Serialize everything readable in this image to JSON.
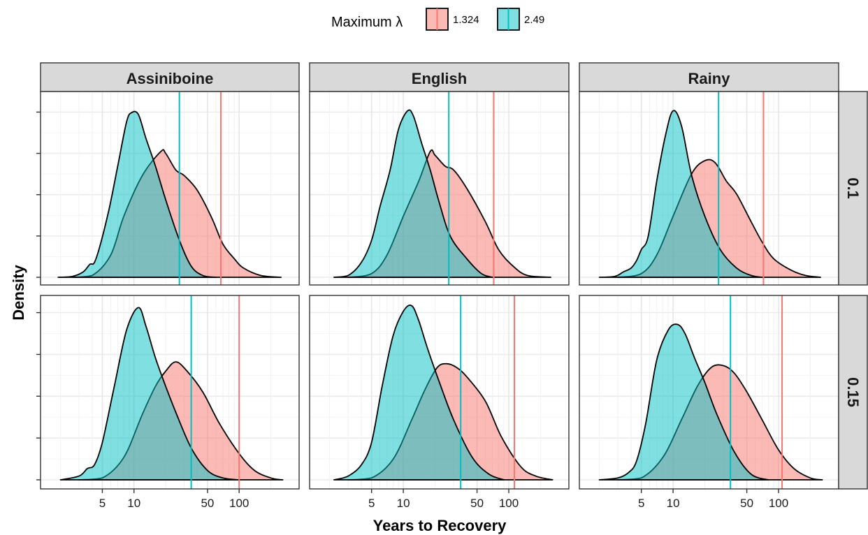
{
  "chart_data": {
    "type": "area",
    "subtype": "faceted density plot (log x axis)",
    "xlabel": "Years to Recovery",
    "ylabel": "Density",
    "x_scale": "log10",
    "x_range": [
      1.6,
      300
    ],
    "x_ticks": [
      5,
      10,
      50,
      100
    ],
    "x_tick_labels": [
      "5",
      "10",
      "50",
      "100"
    ],
    "grid": true,
    "legend": {
      "title": "Maximum λ",
      "position": "top",
      "entries": [
        {
          "label": "1.324",
          "color": "#f8766d"
        },
        {
          "label": "2.49",
          "color": "#00bfc4"
        }
      ]
    },
    "columns": [
      "Assiniboine",
      "English",
      "Rainy"
    ],
    "rows": [
      "0.1",
      "0.15"
    ],
    "y_ticks_count": 5,
    "panels": [
      {
        "column": "Assiniboine",
        "row": "0.1",
        "ymax": 0.94,
        "series": [
          {
            "name": "1.324",
            "points": [
              [
                2.6,
                0
              ],
              [
                4,
                0.01
              ],
              [
                6,
                0.12
              ],
              [
                8,
                0.33
              ],
              [
                12,
                0.55
              ],
              [
                18,
                0.68
              ],
              [
                20,
                0.67
              ],
              [
                25,
                0.58
              ],
              [
                30,
                0.55
              ],
              [
                40,
                0.47
              ],
              [
                55,
                0.32
              ],
              [
                70,
                0.18
              ],
              [
                90,
                0.1
              ],
              [
                110,
                0.05
              ],
              [
                160,
                0.01
              ],
              [
                250,
                0
              ]
            ],
            "median_line": 67
          },
          {
            "name": "2.49",
            "points": [
              [
                1.9,
                0
              ],
              [
                2.6,
                0.005
              ],
              [
                3.3,
                0.03
              ],
              [
                3.8,
                0.07
              ],
              [
                4.2,
                0.08
              ],
              [
                4.8,
                0.18
              ],
              [
                5.8,
                0.37
              ],
              [
                7,
                0.6
              ],
              [
                8.5,
                0.84
              ],
              [
                9.5,
                0.89
              ],
              [
                11,
                0.88
              ],
              [
                13,
                0.75
              ],
              [
                16,
                0.6
              ],
              [
                20,
                0.42
              ],
              [
                27,
                0.2
              ],
              [
                35,
                0.06
              ],
              [
                45,
                0.01
              ],
              [
                60,
                0
              ]
            ],
            "median_line": 27
          }
        ]
      },
      {
        "column": "English",
        "row": "0.1",
        "ymax": 0.94,
        "series": [
          {
            "name": "1.324",
            "points": [
              [
                3,
                0
              ],
              [
                5,
                0.02
              ],
              [
                7,
                0.12
              ],
              [
                10,
                0.33
              ],
              [
                14,
                0.52
              ],
              [
                18,
                0.68
              ],
              [
                20,
                0.66
              ],
              [
                25,
                0.6
              ],
              [
                30,
                0.58
              ],
              [
                40,
                0.48
              ],
              [
                60,
                0.3
              ],
              [
                80,
                0.15
              ],
              [
                110,
                0.06
              ],
              [
                150,
                0.01
              ],
              [
                250,
                0
              ]
            ],
            "median_line": 72
          },
          {
            "name": "2.49",
            "points": [
              [
                2.2,
                0
              ],
              [
                3,
                0.01
              ],
              [
                4,
                0.08
              ],
              [
                5,
                0.2
              ],
              [
                6,
                0.38
              ],
              [
                7.5,
                0.58
              ],
              [
                9,
                0.8
              ],
              [
                11,
                0.9
              ],
              [
                12.5,
                0.87
              ],
              [
                15,
                0.72
              ],
              [
                18,
                0.58
              ],
              [
                22,
                0.4
              ],
              [
                28,
                0.22
              ],
              [
                40,
                0.1
              ],
              [
                55,
                0.02
              ],
              [
                70,
                0
              ]
            ],
            "median_line": 27
          }
        ]
      },
      {
        "column": "Rainy",
        "row": "0.1",
        "ymax": 0.94,
        "series": [
          {
            "name": "1.324",
            "points": [
              [
                3,
                0
              ],
              [
                5,
                0.02
              ],
              [
                7,
                0.12
              ],
              [
                10,
                0.33
              ],
              [
                15,
                0.56
              ],
              [
                20,
                0.63
              ],
              [
                25,
                0.62
              ],
              [
                32,
                0.52
              ],
              [
                40,
                0.45
              ],
              [
                55,
                0.3
              ],
              [
                70,
                0.19
              ],
              [
                90,
                0.1
              ],
              [
                130,
                0.04
              ],
              [
                180,
                0.01
              ],
              [
                250,
                0
              ]
            ],
            "median_line": 72
          },
          {
            "name": "2.49",
            "points": [
              [
                2,
                0
              ],
              [
                2.8,
                0.005
              ],
              [
                3.4,
                0.03
              ],
              [
                4,
                0.05
              ],
              [
                4.5,
                0.09
              ],
              [
                5,
                0.15
              ],
              [
                5.8,
                0.22
              ],
              [
                7,
                0.52
              ],
              [
                8.5,
                0.77
              ],
              [
                10,
                0.9
              ],
              [
                12,
                0.82
              ],
              [
                15,
                0.55
              ],
              [
                20,
                0.33
              ],
              [
                28,
                0.15
              ],
              [
                40,
                0.05
              ],
              [
                55,
                0.01
              ],
              [
                70,
                0
              ]
            ],
            "median_line": 27
          }
        ]
      },
      {
        "column": "Assiniboine",
        "row": "0.15",
        "ymax": 0.94,
        "series": [
          {
            "name": "1.324",
            "points": [
              [
                3,
                0
              ],
              [
                5,
                0.01
              ],
              [
                8,
                0.12
              ],
              [
                12,
                0.35
              ],
              [
                16,
                0.5
              ],
              [
                20,
                0.58
              ],
              [
                25,
                0.63
              ],
              [
                32,
                0.58
              ],
              [
                45,
                0.47
              ],
              [
                65,
                0.3
              ],
              [
                100,
                0.14
              ],
              [
                140,
                0.05
              ],
              [
                200,
                0.01
              ],
              [
                260,
                0
              ]
            ],
            "median_line": 100
          },
          {
            "name": "2.49",
            "points": [
              [
                2,
                0
              ],
              [
                3,
                0.02
              ],
              [
                3.6,
                0.06
              ],
              [
                4.2,
                0.08
              ],
              [
                5,
                0.2
              ],
              [
                6.5,
                0.5
              ],
              [
                8.5,
                0.8
              ],
              [
                11,
                0.92
              ],
              [
                13,
                0.82
              ],
              [
                16,
                0.65
              ],
              [
                20,
                0.5
              ],
              [
                25,
                0.36
              ],
              [
                35,
                0.17
              ],
              [
                50,
                0.05
              ],
              [
                70,
                0.01
              ],
              [
                100,
                0
              ]
            ],
            "median_line": 35
          }
        ]
      },
      {
        "column": "English",
        "row": "0.15",
        "ymax": 0.94,
        "series": [
          {
            "name": "1.324",
            "points": [
              [
                3,
                0
              ],
              [
                5,
                0.01
              ],
              [
                8,
                0.11
              ],
              [
                12,
                0.32
              ],
              [
                16,
                0.48
              ],
              [
                21,
                0.6
              ],
              [
                26,
                0.62
              ],
              [
                32,
                0.6
              ],
              [
                40,
                0.55
              ],
              [
                60,
                0.42
              ],
              [
                85,
                0.23
              ],
              [
                130,
                0.07
              ],
              [
                180,
                0.02
              ],
              [
                260,
                0
              ]
            ],
            "median_line": 113
          },
          {
            "name": "2.49",
            "points": [
              [
                2.2,
                0
              ],
              [
                3,
                0.02
              ],
              [
                4,
                0.08
              ],
              [
                5,
                0.2
              ],
              [
                6.3,
                0.5
              ],
              [
                8,
                0.77
              ],
              [
                10,
                0.9
              ],
              [
                12,
                0.93
              ],
              [
                14,
                0.85
              ],
              [
                17,
                0.7
              ],
              [
                22,
                0.52
              ],
              [
                30,
                0.32
              ],
              [
                45,
                0.12
              ],
              [
                65,
                0.03
              ],
              [
                90,
                0
              ]
            ],
            "median_line": 35
          }
        ]
      },
      {
        "column": "Rainy",
        "row": "0.15",
        "ymax": 0.94,
        "series": [
          {
            "name": "1.324",
            "points": [
              [
                3,
                0
              ],
              [
                5,
                0.01
              ],
              [
                8,
                0.12
              ],
              [
                12,
                0.32
              ],
              [
                17,
                0.5
              ],
              [
                23,
                0.6
              ],
              [
                30,
                0.61
              ],
              [
                38,
                0.57
              ],
              [
                50,
                0.47
              ],
              [
                70,
                0.32
              ],
              [
                100,
                0.16
              ],
              [
                140,
                0.06
              ],
              [
                200,
                0.01
              ],
              [
                260,
                0
              ]
            ],
            "median_line": 108
          },
          {
            "name": "2.49",
            "points": [
              [
                2,
                0
              ],
              [
                3,
                0.01
              ],
              [
                3.8,
                0.04
              ],
              [
                4.5,
                0.1
              ],
              [
                5.5,
                0.3
              ],
              [
                7,
                0.64
              ],
              [
                9,
                0.8
              ],
              [
                11,
                0.83
              ],
              [
                13,
                0.78
              ],
              [
                16,
                0.65
              ],
              [
                20,
                0.52
              ],
              [
                26,
                0.35
              ],
              [
                38,
                0.15
              ],
              [
                55,
                0.03
              ],
              [
                80,
                0
              ]
            ],
            "median_line": 35
          }
        ]
      }
    ]
  }
}
